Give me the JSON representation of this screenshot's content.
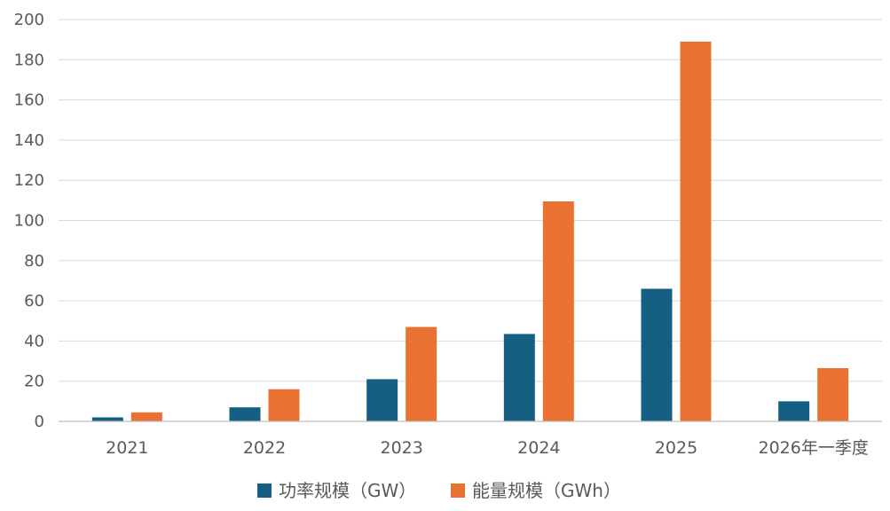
{
  "chart_data": {
    "type": "bar",
    "title": "",
    "xlabel": "",
    "ylabel": "",
    "categories": [
      "2021",
      "2022",
      "2023",
      "2024",
      "2025",
      "2026年一季度"
    ],
    "series": [
      {
        "name": "功率规模（GW）",
        "color": "#156082",
        "values": [
          2,
          7,
          21,
          43.5,
          66,
          10
        ]
      },
      {
        "name": "能量规模（GWh）",
        "color": "#E97132",
        "values": [
          4.5,
          16,
          47,
          109.5,
          189,
          26.5
        ]
      }
    ],
    "ylim": [
      0,
      200
    ],
    "yticks": [
      0,
      20,
      40,
      60,
      80,
      100,
      120,
      140,
      160,
      180,
      200
    ],
    "grid": true,
    "legend_position": "bottom"
  }
}
